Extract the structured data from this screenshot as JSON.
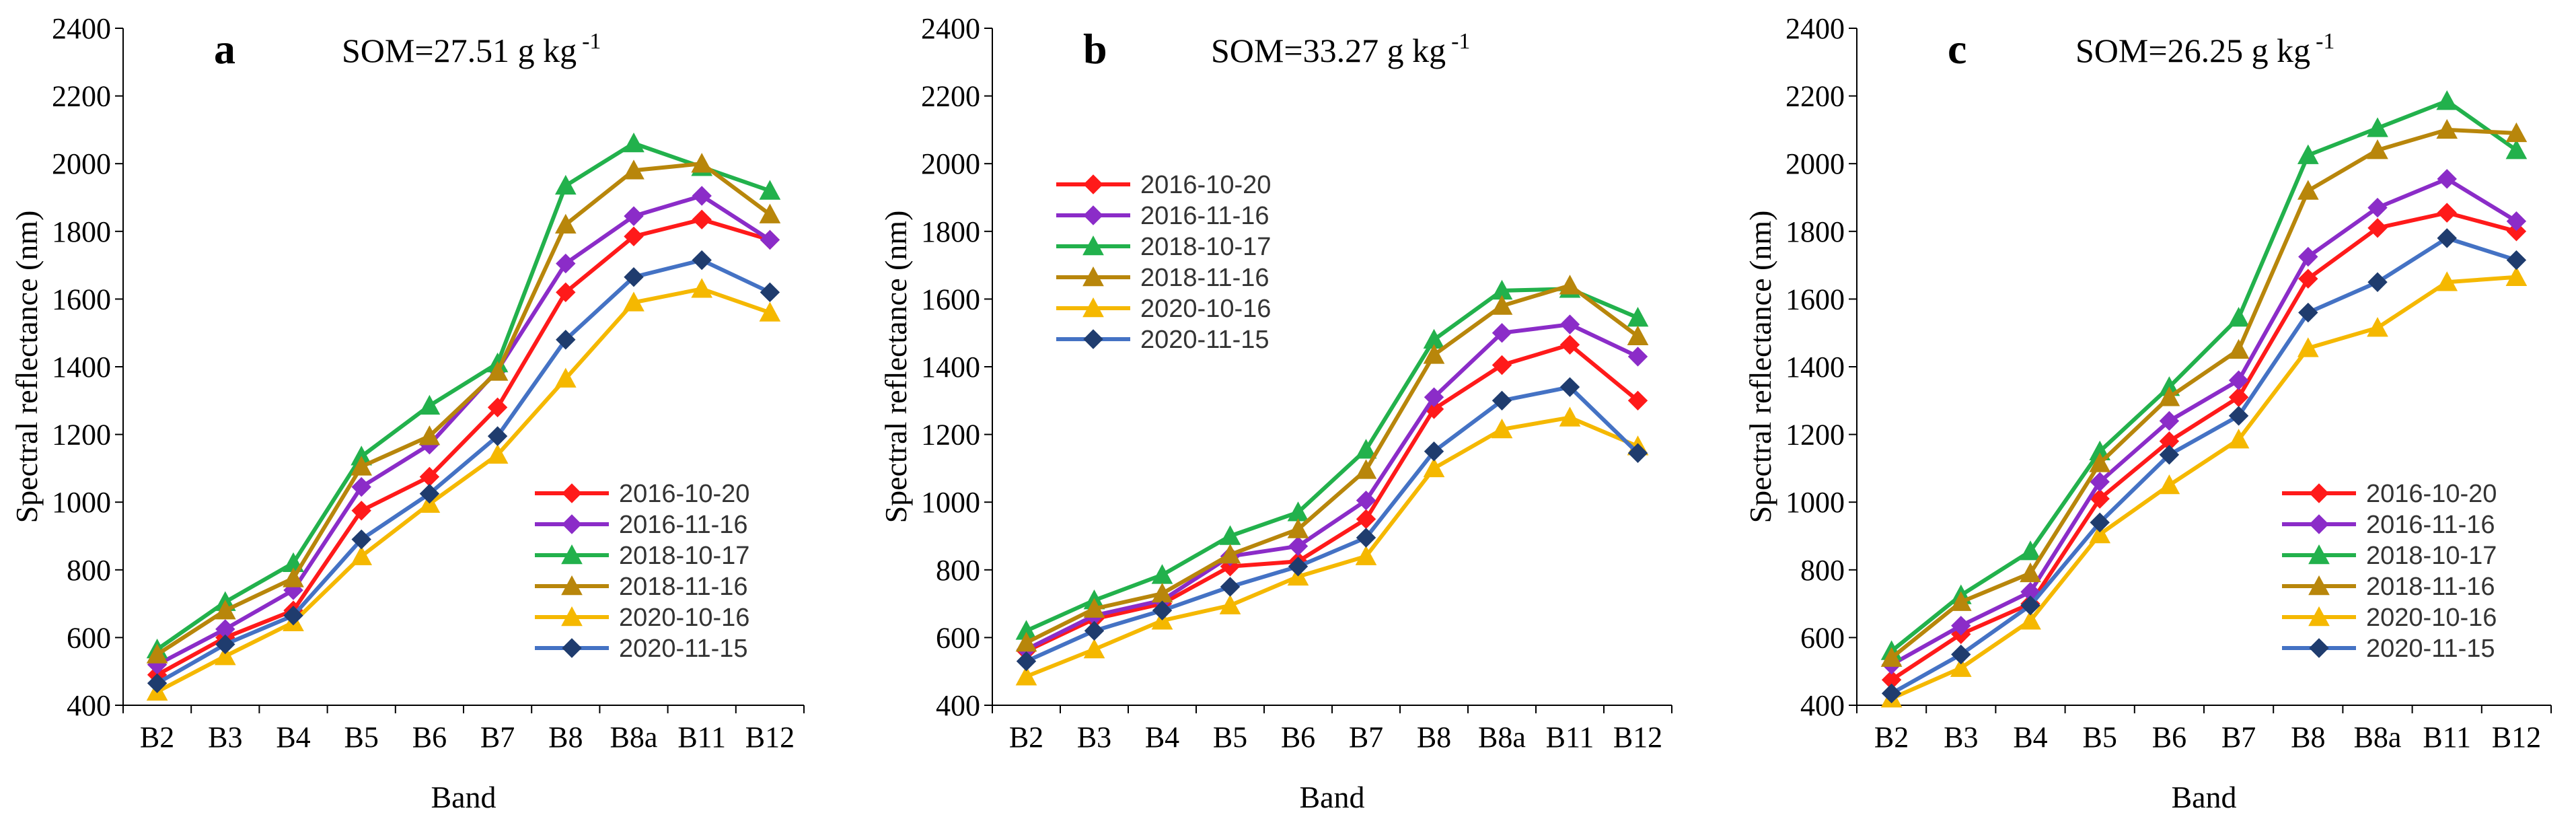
{
  "figure": {
    "panels": [
      {
        "letter": "a",
        "som_text": "SOM=27.51 g kg",
        "som_exponent": "-1",
        "legend_position": "bottom-right"
      },
      {
        "letter": "b",
        "som_text": "SOM=33.27 g kg",
        "som_exponent": "-1",
        "legend_position": "top-left"
      },
      {
        "letter": "c",
        "som_text": "SOM=26.25 g kg",
        "som_exponent": "-1",
        "legend_position": "bottom-right"
      }
    ]
  },
  "series_styles": [
    {
      "name": "2016-10-20",
      "color": "#FF1A1A",
      "marker": "diamond"
    },
    {
      "name": "2016-11-16",
      "color": "#8B2CC8",
      "marker": "diamond"
    },
    {
      "name": "2018-10-17",
      "color": "#22B14C",
      "marker": "triangle"
    },
    {
      "name": "2018-11-16",
      "color": "#B8860B",
      "marker": "triangle"
    },
    {
      "name": "2020-10-16",
      "color": "#F5B800",
      "marker": "triangle"
    },
    {
      "name": "2020-11-15",
      "color": "#4472C4",
      "marker": "diamond",
      "marker_color": "#1F3C6E"
    }
  ],
  "chart_data": [
    {
      "type": "line",
      "panel": "a",
      "title": "SOM=27.51 g kg -1",
      "xlabel": "Band",
      "ylabel": "Spectral reflectance (nm)",
      "ylim": [
        400,
        2400
      ],
      "yticks": [
        400,
        600,
        800,
        1000,
        1200,
        1400,
        1600,
        1800,
        2000,
        2200,
        2400
      ],
      "grid": false,
      "categories": [
        "B2",
        "B3",
        "B4",
        "B5",
        "B6",
        "B7",
        "B8",
        "B8a",
        "B11",
        "B12"
      ],
      "series": [
        {
          "name": "2016-10-20",
          "values": [
            490,
            600,
            680,
            975,
            1075,
            1280,
            1620,
            1785,
            1835,
            1775
          ]
        },
        {
          "name": "2016-11-16",
          "values": [
            520,
            625,
            740,
            1045,
            1170,
            1390,
            1705,
            1845,
            1905,
            1775
          ]
        },
        {
          "name": "2018-10-17",
          "values": [
            565,
            705,
            820,
            1135,
            1285,
            1410,
            1935,
            2060,
            1990,
            1920
          ]
        },
        {
          "name": "2018-11-16",
          "values": [
            550,
            680,
            775,
            1105,
            1195,
            1385,
            1820,
            1980,
            2000,
            1850
          ]
        },
        {
          "name": "2020-10-16",
          "values": [
            440,
            545,
            645,
            840,
            995,
            1140,
            1365,
            1590,
            1630,
            1560
          ]
        },
        {
          "name": "2020-11-15",
          "values": [
            465,
            580,
            665,
            890,
            1025,
            1195,
            1480,
            1665,
            1715,
            1620
          ]
        }
      ]
    },
    {
      "type": "line",
      "panel": "b",
      "title": "SOM=33.27 g kg -1",
      "xlabel": "Band",
      "ylabel": "Spectral reflectance (nm)",
      "ylim": [
        400,
        2400
      ],
      "yticks": [
        400,
        600,
        800,
        1000,
        1200,
        1400,
        1600,
        1800,
        2000,
        2200,
        2400
      ],
      "grid": false,
      "categories": [
        "B2",
        "B3",
        "B4",
        "B5",
        "B6",
        "B7",
        "B8",
        "B8a",
        "B11",
        "B12"
      ],
      "series": [
        {
          "name": "2016-10-20",
          "values": [
            560,
            655,
            700,
            810,
            825,
            950,
            1275,
            1405,
            1465,
            1300
          ]
        },
        {
          "name": "2016-11-16",
          "values": [
            565,
            665,
            710,
            840,
            870,
            1005,
            1310,
            1500,
            1525,
            1430
          ]
        },
        {
          "name": "2018-10-17",
          "values": [
            620,
            710,
            785,
            900,
            970,
            1155,
            1480,
            1625,
            1630,
            1545
          ]
        },
        {
          "name": "2018-11-16",
          "values": [
            585,
            685,
            730,
            845,
            920,
            1095,
            1435,
            1580,
            1640,
            1490
          ]
        },
        {
          "name": "2020-10-16",
          "values": [
            485,
            565,
            650,
            695,
            780,
            840,
            1100,
            1215,
            1250,
            1165
          ]
        },
        {
          "name": "2020-11-15",
          "values": [
            530,
            620,
            680,
            750,
            810,
            895,
            1150,
            1300,
            1340,
            1145
          ]
        }
      ]
    },
    {
      "type": "line",
      "panel": "c",
      "title": "SOM=26.25 g kg -1",
      "xlabel": "Band",
      "ylabel": "Spectral reflectance (nm)",
      "ylim": [
        400,
        2400
      ],
      "yticks": [
        400,
        600,
        800,
        1000,
        1200,
        1400,
        1600,
        1800,
        2000,
        2200,
        2400
      ],
      "grid": false,
      "categories": [
        "B2",
        "B3",
        "B4",
        "B5",
        "B6",
        "B7",
        "B8",
        "B8a",
        "B11",
        "B12"
      ],
      "series": [
        {
          "name": "2016-10-20",
          "values": [
            475,
            610,
            700,
            1010,
            1180,
            1310,
            1660,
            1810,
            1855,
            1800
          ]
        },
        {
          "name": "2016-11-16",
          "values": [
            520,
            635,
            735,
            1060,
            1240,
            1360,
            1725,
            1870,
            1955,
            1830
          ]
        },
        {
          "name": "2018-10-17",
          "values": [
            560,
            725,
            855,
            1150,
            1340,
            1545,
            2025,
            2105,
            2185,
            2040
          ]
        },
        {
          "name": "2018-11-16",
          "values": [
            540,
            705,
            790,
            1115,
            1310,
            1450,
            1920,
            2040,
            2100,
            2090
          ]
        },
        {
          "name": "2020-10-16",
          "values": [
            420,
            510,
            650,
            905,
            1050,
            1185,
            1455,
            1515,
            1650,
            1665
          ]
        },
        {
          "name": "2020-11-15",
          "values": [
            435,
            550,
            695,
            940,
            1140,
            1255,
            1560,
            1650,
            1780,
            1715
          ]
        }
      ]
    }
  ]
}
